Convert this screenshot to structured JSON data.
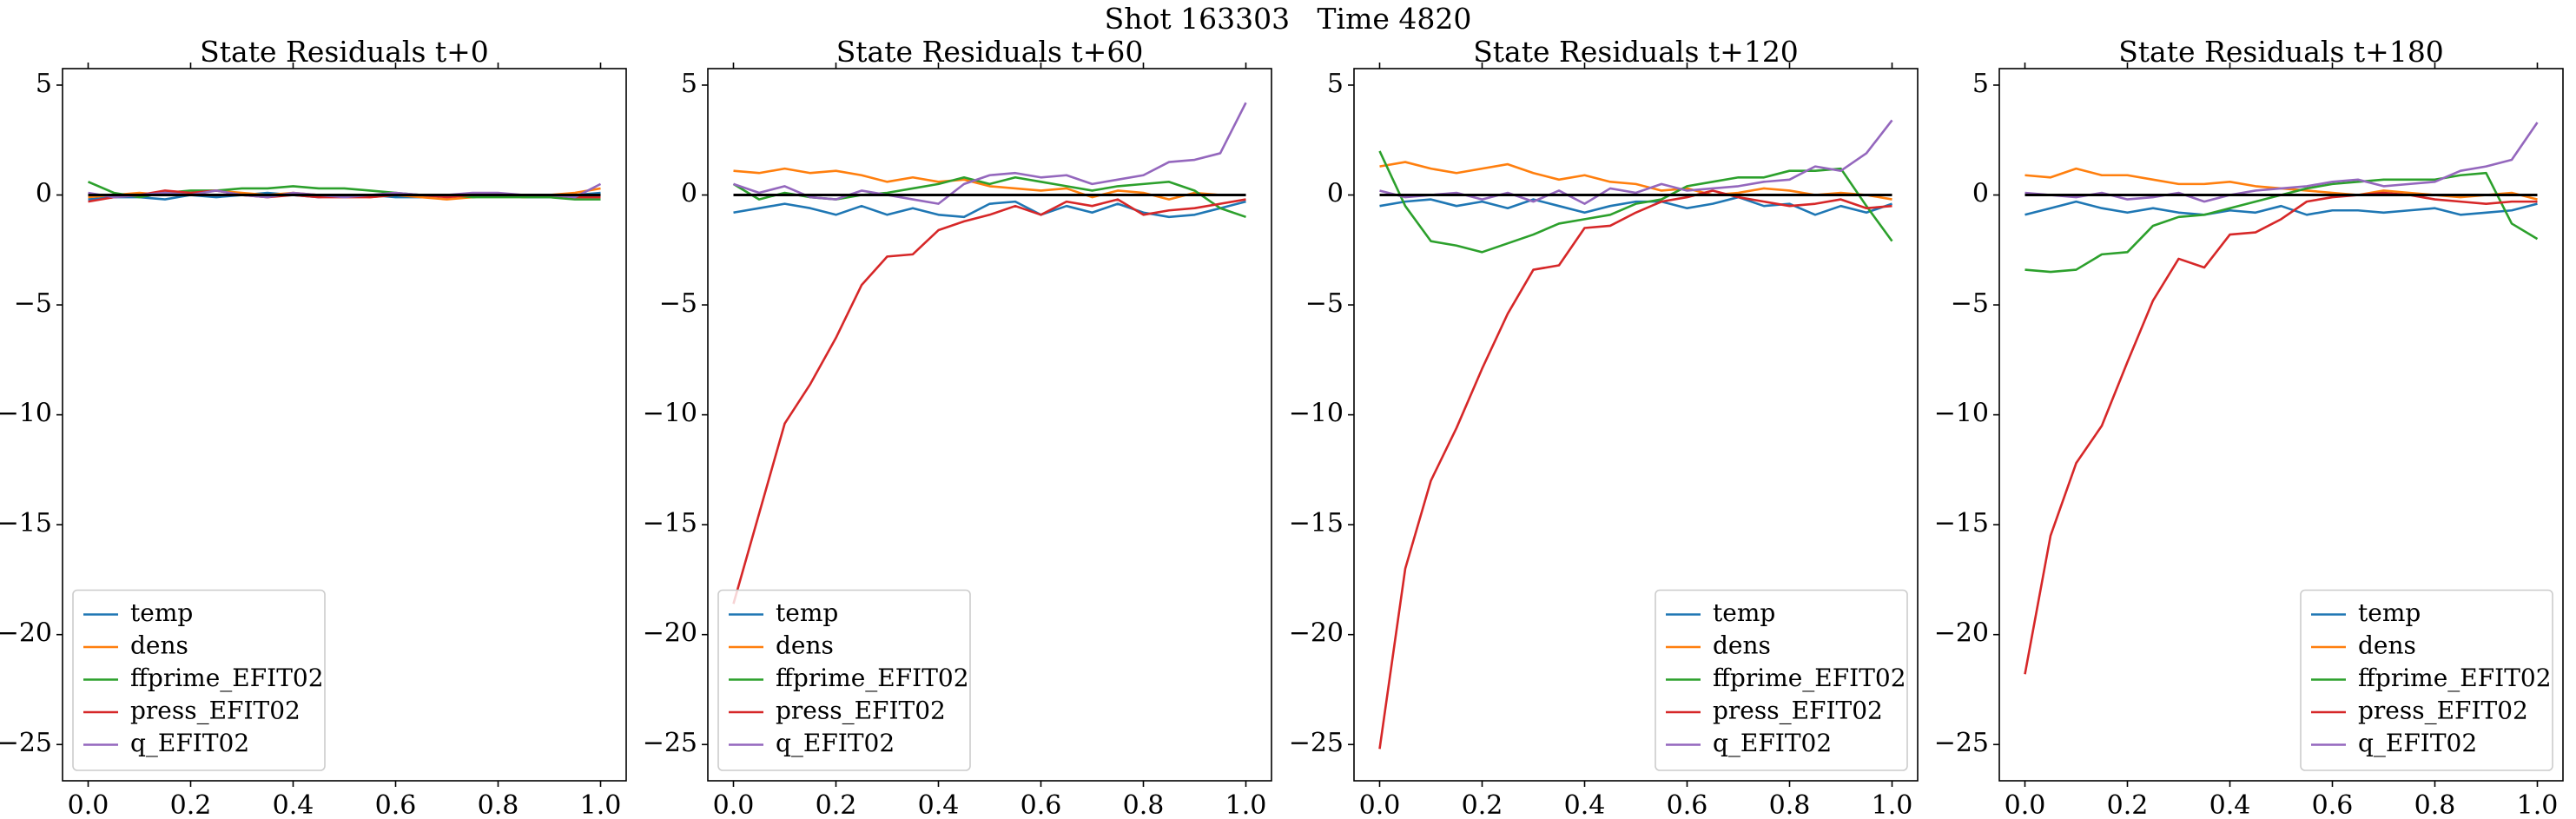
{
  "title": "Shot 163303   Time 4820",
  "chart_data": [
    {
      "type": "line",
      "title": "State Residuals t+0",
      "legend": "lower left",
      "hline": 0,
      "xlim": [
        -0.05,
        1.05
      ],
      "ylim": [
        -26.65,
        5.75
      ],
      "xticks": [
        {
          "value": 0,
          "label": "0.0"
        },
        0.2,
        0.4,
        0.6,
        0.8,
        {
          "value": 1,
          "label": "1.0"
        }
      ],
      "yticks": [
        5,
        0,
        {
          "value": -5,
          "label": "−5"
        },
        {
          "value": -10,
          "label": "−10"
        },
        {
          "value": -15,
          "label": "−15"
        },
        {
          "value": -20,
          "label": "−20"
        },
        {
          "value": -25,
          "label": "−25"
        }
      ],
      "x": [
        0,
        0.05,
        0.1,
        0.15,
        0.2,
        0.25,
        0.3,
        0.35,
        0.4,
        0.45,
        0.5,
        0.55,
        0.6,
        0.65,
        0.7,
        0.75,
        0.8,
        0.85,
        0.9,
        0.95,
        1
      ],
      "series": [
        {
          "name": "temp",
          "color": "#1f77b4",
          "values": [
            -0.2,
            -0.1,
            -0.1,
            -0.2,
            0.0,
            -0.1,
            0.0,
            0.1,
            0.0,
            -0.1,
            0.0,
            0.0,
            -0.1,
            -0.1,
            0.0,
            -0.1,
            0.0,
            -0.1,
            -0.1,
            0.0,
            0.1
          ]
        },
        {
          "name": "dens",
          "color": "#ff7f0e",
          "values": [
            -0.1,
            0.0,
            0.1,
            0.0,
            0.1,
            0.2,
            0.1,
            0.0,
            0.1,
            0.0,
            0.0,
            -0.1,
            0.0,
            -0.1,
            -0.2,
            -0.1,
            0.0,
            -0.1,
            0.0,
            0.1,
            0.3
          ]
        },
        {
          "name": "ffprime_EFIT02",
          "color": "#2ca02c",
          "values": [
            0.6,
            0.1,
            -0.1,
            0.1,
            0.2,
            0.2,
            0.3,
            0.3,
            0.4,
            0.3,
            0.3,
            0.2,
            0.1,
            0.0,
            0.0,
            -0.1,
            -0.1,
            -0.1,
            -0.1,
            -0.2,
            -0.2
          ]
        },
        {
          "name": "press_EFIT02",
          "color": "#d62728",
          "values": [
            -0.3,
            -0.1,
            0.0,
            0.2,
            0.1,
            0.2,
            0.0,
            -0.1,
            0.0,
            -0.1,
            -0.1,
            -0.1,
            0.0,
            0.0,
            -0.1,
            0.0,
            0.0,
            0.0,
            0.0,
            -0.1,
            -0.1
          ]
        },
        {
          "name": "q_EFIT02",
          "color": "#9467bd",
          "values": [
            0.1,
            -0.1,
            0.0,
            0.1,
            0.0,
            0.2,
            0.0,
            -0.1,
            0.1,
            0.0,
            -0.1,
            0.0,
            0.1,
            0.0,
            0.0,
            0.1,
            0.1,
            0.0,
            0.0,
            -0.1,
            0.5
          ]
        }
      ]
    },
    {
      "type": "line",
      "title": "State Residuals t+60",
      "legend": "lower left",
      "hline": 0,
      "xlim": [
        -0.05,
        1.05
      ],
      "ylim": [
        -26.65,
        5.75
      ],
      "xticks": [
        {
          "value": 0,
          "label": "0.0"
        },
        0.2,
        0.4,
        0.6,
        0.8,
        {
          "value": 1,
          "label": "1.0"
        }
      ],
      "yticks": [
        5,
        0,
        {
          "value": -5,
          "label": "−5"
        },
        {
          "value": -10,
          "label": "−10"
        },
        {
          "value": -15,
          "label": "−15"
        },
        {
          "value": -20,
          "label": "−20"
        },
        {
          "value": -25,
          "label": "−25"
        }
      ],
      "x": [
        0,
        0.05,
        0.1,
        0.15,
        0.2,
        0.25,
        0.3,
        0.35,
        0.4,
        0.45,
        0.5,
        0.55,
        0.6,
        0.65,
        0.7,
        0.75,
        0.8,
        0.85,
        0.9,
        0.95,
        1
      ],
      "series": [
        {
          "name": "temp",
          "color": "#1f77b4",
          "values": [
            -0.8,
            -0.6,
            -0.4,
            -0.6,
            -0.9,
            -0.5,
            -0.9,
            -0.6,
            -0.9,
            -1.0,
            -0.4,
            -0.3,
            -0.9,
            -0.5,
            -0.8,
            -0.4,
            -0.8,
            -1.0,
            -0.9,
            -0.6,
            -0.3
          ]
        },
        {
          "name": "dens",
          "color": "#ff7f0e",
          "values": [
            1.1,
            1.0,
            1.2,
            1.0,
            1.1,
            0.9,
            0.6,
            0.8,
            0.6,
            0.7,
            0.4,
            0.3,
            0.2,
            0.3,
            -0.1,
            0.2,
            0.1,
            -0.2,
            0.1,
            0.0,
            0.0
          ]
        },
        {
          "name": "ffprime_EFIT02",
          "color": "#2ca02c",
          "values": [
            0.5,
            -0.2,
            0.1,
            -0.1,
            -0.2,
            0.0,
            0.1,
            0.3,
            0.5,
            0.8,
            0.5,
            0.8,
            0.6,
            0.4,
            0.2,
            0.4,
            0.5,
            0.6,
            0.2,
            -0.6,
            -1.0
          ]
        },
        {
          "name": "press_EFIT02",
          "color": "#d62728",
          "values": [
            -18.6,
            -14.5,
            -10.4,
            -8.6,
            -6.5,
            -4.1,
            -2.8,
            -2.7,
            -1.6,
            -1.2,
            -0.9,
            -0.5,
            -0.9,
            -0.3,
            -0.5,
            -0.2,
            -0.9,
            -0.7,
            -0.6,
            -0.4,
            -0.2
          ]
        },
        {
          "name": "q_EFIT02",
          "color": "#9467bd",
          "values": [
            0.5,
            0.1,
            0.4,
            -0.1,
            -0.2,
            0.2,
            0.0,
            -0.2,
            -0.4,
            0.5,
            0.9,
            1.0,
            0.8,
            0.9,
            0.5,
            0.7,
            0.9,
            1.5,
            1.6,
            1.9,
            4.2
          ]
        }
      ]
    },
    {
      "type": "line",
      "title": "State Residuals t+120",
      "legend": "lower right",
      "hline": 0,
      "xlim": [
        -0.05,
        1.05
      ],
      "ylim": [
        -26.65,
        5.75
      ],
      "xticks": [
        {
          "value": 0,
          "label": "0.0"
        },
        0.2,
        0.4,
        0.6,
        0.8,
        {
          "value": 1,
          "label": "1.0"
        }
      ],
      "yticks": [
        5,
        0,
        {
          "value": -5,
          "label": "−5"
        },
        {
          "value": -10,
          "label": "−10"
        },
        {
          "value": -15,
          "label": "−15"
        },
        {
          "value": -20,
          "label": "−20"
        },
        {
          "value": -25,
          "label": "−25"
        }
      ],
      "x": [
        0,
        0.05,
        0.1,
        0.15,
        0.2,
        0.25,
        0.3,
        0.35,
        0.4,
        0.45,
        0.5,
        0.55,
        0.6,
        0.65,
        0.7,
        0.75,
        0.8,
        0.85,
        0.9,
        0.95,
        1
      ],
      "series": [
        {
          "name": "temp",
          "color": "#1f77b4",
          "values": [
            -0.5,
            -0.3,
            -0.2,
            -0.5,
            -0.3,
            -0.6,
            -0.2,
            -0.5,
            -0.8,
            -0.5,
            -0.3,
            -0.3,
            -0.6,
            -0.4,
            -0.1,
            -0.5,
            -0.4,
            -0.9,
            -0.5,
            -0.8,
            -0.4
          ]
        },
        {
          "name": "dens",
          "color": "#ff7f0e",
          "values": [
            1.3,
            1.5,
            1.2,
            1.0,
            1.2,
            1.4,
            1.0,
            0.7,
            0.9,
            0.6,
            0.5,
            0.2,
            0.3,
            0.0,
            0.1,
            0.3,
            0.2,
            0.0,
            0.1,
            0.0,
            -0.2
          ]
        },
        {
          "name": "ffprime_EFIT02",
          "color": "#2ca02c",
          "values": [
            2.0,
            -0.5,
            -2.1,
            -2.3,
            -2.6,
            -2.2,
            -1.8,
            -1.3,
            -1.1,
            -0.9,
            -0.4,
            -0.2,
            0.4,
            0.6,
            0.8,
            0.8,
            1.1,
            1.1,
            1.2,
            -0.5,
            -2.1
          ]
        },
        {
          "name": "press_EFIT02",
          "color": "#d62728",
          "values": [
            -25.2,
            -17.0,
            -13.0,
            -10.6,
            -7.9,
            -5.4,
            -3.4,
            -3.2,
            -1.5,
            -1.4,
            -0.8,
            -0.3,
            -0.1,
            0.2,
            -0.1,
            -0.3,
            -0.5,
            -0.4,
            -0.2,
            -0.6,
            -0.5
          ]
        },
        {
          "name": "q_EFIT02",
          "color": "#9467bd",
          "values": [
            0.2,
            -0.1,
            0.0,
            0.1,
            -0.2,
            0.1,
            -0.3,
            0.2,
            -0.4,
            0.3,
            0.1,
            0.5,
            0.2,
            0.3,
            0.4,
            0.6,
            0.7,
            1.3,
            1.1,
            1.9,
            3.4
          ]
        }
      ]
    },
    {
      "type": "line",
      "title": "State Residuals t+180",
      "legend": "lower right",
      "hline": 0,
      "xlim": [
        -0.05,
        1.05
      ],
      "ylim": [
        -26.65,
        5.75
      ],
      "xticks": [
        {
          "value": 0,
          "label": "0.0"
        },
        0.2,
        0.4,
        0.6,
        0.8,
        {
          "value": 1,
          "label": "1.0"
        }
      ],
      "yticks": [
        5,
        0,
        {
          "value": -5,
          "label": "−5"
        },
        {
          "value": -10,
          "label": "−10"
        },
        {
          "value": -15,
          "label": "−15"
        },
        {
          "value": -20,
          "label": "−20"
        },
        {
          "value": -25,
          "label": "−25"
        }
      ],
      "x": [
        0,
        0.05,
        0.1,
        0.15,
        0.2,
        0.25,
        0.3,
        0.35,
        0.4,
        0.45,
        0.5,
        0.55,
        0.6,
        0.65,
        0.7,
        0.75,
        0.8,
        0.85,
        0.9,
        0.95,
        1
      ],
      "series": [
        {
          "name": "temp",
          "color": "#1f77b4",
          "values": [
            -0.9,
            -0.6,
            -0.3,
            -0.6,
            -0.8,
            -0.6,
            -0.8,
            -0.9,
            -0.7,
            -0.8,
            -0.5,
            -0.9,
            -0.7,
            -0.7,
            -0.8,
            -0.7,
            -0.6,
            -0.9,
            -0.8,
            -0.7,
            -0.4
          ]
        },
        {
          "name": "dens",
          "color": "#ff7f0e",
          "values": [
            0.9,
            0.8,
            1.2,
            0.9,
            0.9,
            0.7,
            0.5,
            0.5,
            0.6,
            0.4,
            0.3,
            0.2,
            0.1,
            0.0,
            0.2,
            0.1,
            0.0,
            -0.1,
            0.0,
            0.1,
            -0.2
          ]
        },
        {
          "name": "ffprime_EFIT02",
          "color": "#2ca02c",
          "values": [
            -3.4,
            -3.5,
            -3.4,
            -2.7,
            -2.6,
            -1.4,
            -1.0,
            -0.9,
            -0.6,
            -0.3,
            0.0,
            0.3,
            0.5,
            0.6,
            0.7,
            0.7,
            0.7,
            0.9,
            1.0,
            -1.3,
            -2.0
          ]
        },
        {
          "name": "press_EFIT02",
          "color": "#d62728",
          "values": [
            -21.8,
            -15.5,
            -12.2,
            -10.5,
            -7.6,
            -4.8,
            -2.9,
            -3.3,
            -1.8,
            -1.7,
            -1.1,
            -0.3,
            -0.1,
            0.0,
            0.1,
            0.0,
            -0.2,
            -0.3,
            -0.4,
            -0.3,
            -0.3
          ]
        },
        {
          "name": "q_EFIT02",
          "color": "#9467bd",
          "values": [
            0.1,
            0.0,
            -0.1,
            0.1,
            -0.2,
            -0.1,
            0.1,
            -0.3,
            0.0,
            0.2,
            0.3,
            0.4,
            0.6,
            0.7,
            0.4,
            0.5,
            0.6,
            1.1,
            1.3,
            1.6,
            3.3
          ]
        }
      ]
    }
  ]
}
